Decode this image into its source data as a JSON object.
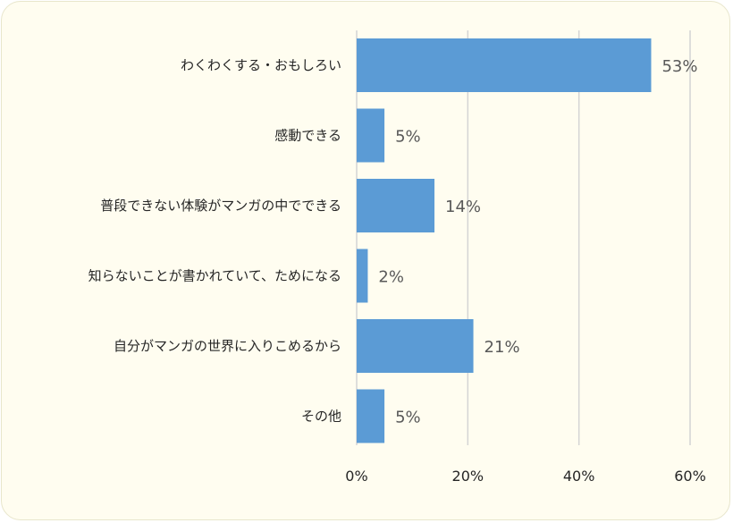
{
  "chart_data": {
    "type": "bar",
    "orientation": "horizontal",
    "categories": [
      "わくわくする・おもしろい",
      "感動できる",
      "普段できない体験がマンガの中でできる",
      "知らないことが書かれていて、ためになる",
      "自分がマンガの世界に入りこめるから",
      "その他"
    ],
    "values": [
      53,
      5,
      14,
      2,
      21,
      5
    ],
    "value_labels": [
      "53%",
      "5%",
      "14%",
      "2%",
      "21%",
      "5%"
    ],
    "xlim": [
      0,
      60
    ],
    "x_ticks": [
      0,
      20,
      40,
      60
    ],
    "x_tick_labels": [
      "0%",
      "20%",
      "40%",
      "60%"
    ],
    "grid": "vertical",
    "legend": "none",
    "bar_color": "#5b9bd5",
    "grid_color": "#d4d4d4",
    "background_color": "#fffdf0"
  }
}
